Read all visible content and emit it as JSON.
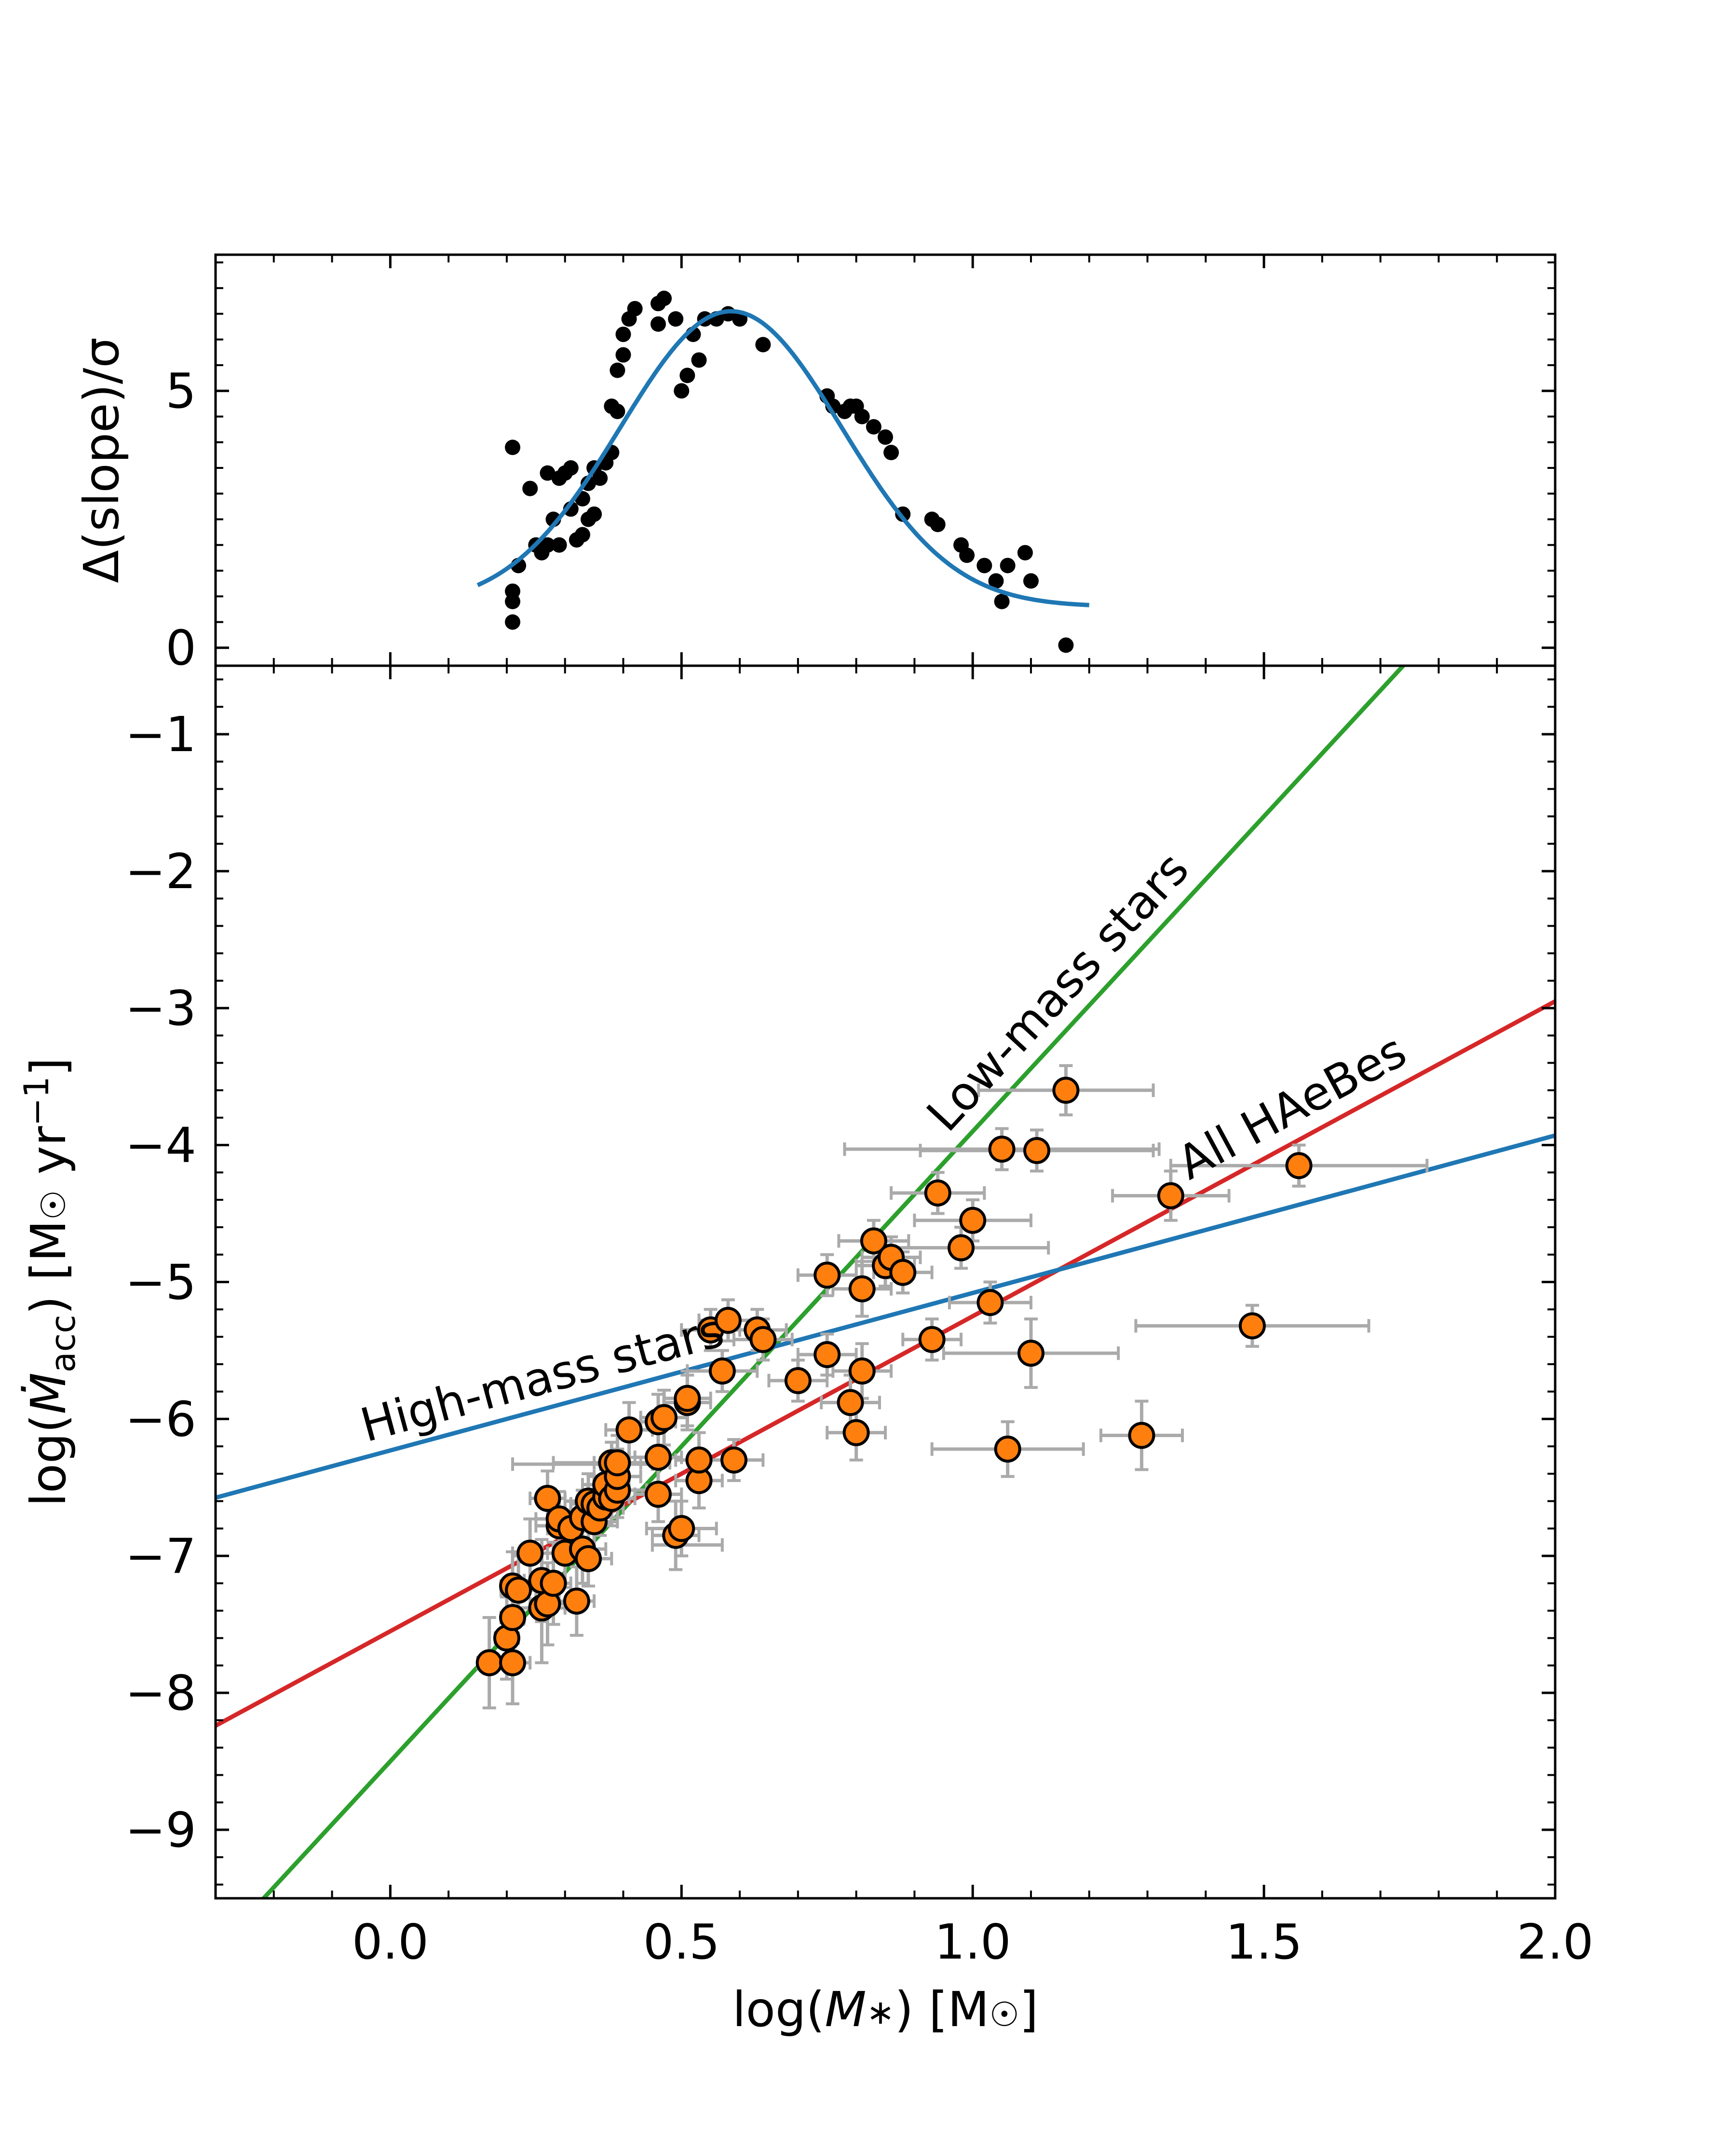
{
  "chart_data": [
    {
      "panel": "top",
      "type": "scatter",
      "ylabel": "Δ(slope)/σ",
      "xlim": [
        -0.3,
        2.0
      ],
      "ylim": [
        -0.35,
        7.65
      ],
      "yticks": [
        0,
        5
      ],
      "ytick_labels": [
        "0",
        "5"
      ],
      "colors": {
        "points": "#000000",
        "fit": "#1f77b4"
      },
      "series": [
        {
          "name": "points",
          "points": [
            [
              0.21,
              3.9
            ],
            [
              0.21,
              1.1
            ],
            [
              0.21,
              0.9
            ],
            [
              0.21,
              0.5
            ],
            [
              0.22,
              1.6
            ],
            [
              0.24,
              3.1
            ],
            [
              0.25,
              2.0
            ],
            [
              0.26,
              1.85
            ],
            [
              0.27,
              2.0
            ],
            [
              0.27,
              3.4
            ],
            [
              0.28,
              2.5
            ],
            [
              0.29,
              3.3
            ],
            [
              0.29,
              2.0
            ],
            [
              0.3,
              3.4
            ],
            [
              0.31,
              2.7
            ],
            [
              0.31,
              3.5
            ],
            [
              0.32,
              2.1
            ],
            [
              0.33,
              2.2
            ],
            [
              0.33,
              2.9
            ],
            [
              0.34,
              2.5
            ],
            [
              0.34,
              3.2
            ],
            [
              0.35,
              2.6
            ],
            [
              0.35,
              3.5
            ],
            [
              0.36,
              3.3
            ],
            [
              0.37,
              3.6
            ],
            [
              0.38,
              4.7
            ],
            [
              0.38,
              3.8
            ],
            [
              0.39,
              4.6
            ],
            [
              0.39,
              5.4
            ],
            [
              0.4,
              5.7
            ],
            [
              0.4,
              6.1
            ],
            [
              0.41,
              6.4
            ],
            [
              0.42,
              6.6
            ],
            [
              0.46,
              6.7
            ],
            [
              0.46,
              6.3
            ],
            [
              0.47,
              6.8
            ],
            [
              0.49,
              6.4
            ],
            [
              0.5,
              5.0
            ],
            [
              0.51,
              5.3
            ],
            [
              0.52,
              6.1
            ],
            [
              0.53,
              5.6
            ],
            [
              0.54,
              6.4
            ],
            [
              0.56,
              6.4
            ],
            [
              0.58,
              6.5
            ],
            [
              0.6,
              6.4
            ],
            [
              0.64,
              5.9
            ],
            [
              0.75,
              4.9
            ],
            [
              0.76,
              4.7
            ],
            [
              0.78,
              4.6
            ],
            [
              0.79,
              4.7
            ],
            [
              0.8,
              4.7
            ],
            [
              0.81,
              4.5
            ],
            [
              0.83,
              4.3
            ],
            [
              0.85,
              4.1
            ],
            [
              0.86,
              3.8
            ],
            [
              0.88,
              2.6
            ],
            [
              0.93,
              2.5
            ],
            [
              0.94,
              2.4
            ],
            [
              0.98,
              2.0
            ],
            [
              0.99,
              1.8
            ],
            [
              1.02,
              1.6
            ],
            [
              1.04,
              1.3
            ],
            [
              1.05,
              0.9
            ],
            [
              1.06,
              1.6
            ],
            [
              1.09,
              1.85
            ],
            [
              1.1,
              1.3
            ],
            [
              1.16,
              0.05
            ]
          ]
        },
        {
          "name": "gaussian fit",
          "model": {
            "A": 5.75,
            "mu": 0.585,
            "sigma": 0.19,
            "c": 0.8,
            "x_from": 0.15,
            "x_to": 1.2
          }
        }
      ]
    },
    {
      "panel": "bottom",
      "type": "scatter",
      "xlabel": "log(M*) [M☉]",
      "ylabel": "log(Ṁacc) [M☉ yr⁻¹]",
      "xlim": [
        -0.3,
        2.0
      ],
      "ylim": [
        -9.5,
        -0.5
      ],
      "xticks": [
        0.0,
        0.5,
        1.0,
        1.5,
        2.0
      ],
      "xtick_labels": [
        "0.0",
        "0.5",
        "1.0",
        "1.5",
        "2.0"
      ],
      "yticks": [
        -9,
        -8,
        -7,
        -6,
        -5,
        -4,
        -3,
        -2,
        -1
      ],
      "ytick_labels": [
        "−9",
        "−8",
        "−7",
        "−6",
        "−5",
        "−4",
        "−3",
        "−2",
        "−1"
      ],
      "colors": {
        "points_fill": "#ff7f0e",
        "points_edge": "#000000",
        "errorbars": "#aaaaaa"
      },
      "lines": [
        {
          "name": "Low-mass stars",
          "color": "#2ca02c",
          "slope": 4.6,
          "intercept": -8.5,
          "label": "Low-mass stars"
        },
        {
          "name": "All HAeBes",
          "color": "#d62728",
          "slope": 2.3,
          "intercept": -7.55,
          "label": "All HAeBes"
        },
        {
          "name": "High-mass stars",
          "color": "#1f77b4",
          "slope": 1.15,
          "intercept": -6.23,
          "label": "High-mass stars"
        }
      ],
      "points": [
        {
          "x": 0.17,
          "y": -7.78,
          "xerr": 0.02,
          "yerr": 0.33
        },
        {
          "x": 0.2,
          "y": -7.6,
          "xerr": 0.02,
          "yerr": 0.3
        },
        {
          "x": 0.21,
          "y": -7.78,
          "xerr": 0.03,
          "yerr": 0.3
        },
        {
          "x": 0.21,
          "y": -7.45,
          "xerr": 0.02,
          "yerr": 0.3
        },
        {
          "x": 0.21,
          "y": -7.22,
          "xerr": 0.02,
          "yerr": 0.25
        },
        {
          "x": 0.22,
          "y": -7.25,
          "xerr": 0.03,
          "yerr": 0.25
        },
        {
          "x": 0.24,
          "y": -6.98,
          "xerr": 0.03,
          "yerr": 0.25
        },
        {
          "x": 0.26,
          "y": -7.38,
          "xerr": 0.04,
          "yerr": 0.4
        },
        {
          "x": 0.26,
          "y": -7.18,
          "xerr": 0.03,
          "yerr": 0.3
        },
        {
          "x": 0.27,
          "y": -6.58,
          "xerr": 0.03,
          "yerr": 0.2
        },
        {
          "x": 0.27,
          "y": -7.35,
          "xerr": 0.03,
          "yerr": 0.3
        },
        {
          "x": 0.28,
          "y": -7.2,
          "xerr": 0.03,
          "yerr": 0.3
        },
        {
          "x": 0.29,
          "y": -6.78,
          "xerr": 0.04,
          "yerr": 0.2
        },
        {
          "x": 0.29,
          "y": -6.73,
          "xerr": 0.04,
          "yerr": 0.2
        },
        {
          "x": 0.3,
          "y": -6.98,
          "xerr": 0.04,
          "yerr": 0.25
        },
        {
          "x": 0.31,
          "y": -6.8,
          "xerr": 0.04,
          "yerr": 0.2
        },
        {
          "x": 0.32,
          "y": -7.33,
          "xerr": 0.03,
          "yerr": 0.25
        },
        {
          "x": 0.33,
          "y": -6.72,
          "xerr": 0.05,
          "yerr": 0.2
        },
        {
          "x": 0.33,
          "y": -6.95,
          "xerr": 0.04,
          "yerr": 0.25
        },
        {
          "x": 0.34,
          "y": -6.6,
          "xerr": 0.04,
          "yerr": 0.2
        },
        {
          "x": 0.34,
          "y": -7.02,
          "xerr": 0.04,
          "yerr": 0.2
        },
        {
          "x": 0.35,
          "y": -6.75,
          "xerr": 0.04,
          "yerr": 0.2
        },
        {
          "x": 0.35,
          "y": -6.62,
          "xerr": 0.04,
          "yerr": 0.2
        },
        {
          "x": 0.36,
          "y": -6.65,
          "xerr": 0.04,
          "yerr": 0.2
        },
        {
          "x": 0.37,
          "y": -6.57,
          "xerr": 0.04,
          "yerr": 0.2
        },
        {
          "x": 0.37,
          "y": -6.48,
          "xerr": 0.04,
          "yerr": 0.2
        },
        {
          "x": 0.38,
          "y": -6.32,
          "xerr": 0.1,
          "yerr": 0.15
        },
        {
          "x": 0.38,
          "y": -6.58,
          "xerr": 0.04,
          "yerr": 0.2
        },
        {
          "x": 0.39,
          "y": -6.52,
          "xerr": 0.05,
          "yerr": 0.2
        },
        {
          "x": 0.39,
          "y": -6.42,
          "xerr": 0.04,
          "yerr": 0.2
        },
        {
          "x": 0.39,
          "y": -6.32,
          "xerr": 0.04,
          "yerr": 0.2
        },
        {
          "x": 0.41,
          "y": -6.08,
          "xerr": 0.04,
          "yerr": 0.2
        },
        {
          "x": 0.46,
          "y": -6.28,
          "xerr": 0.04,
          "yerr": 0.2
        },
        {
          "x": 0.46,
          "y": -6.55,
          "xerr": 0.04,
          "yerr": 0.2
        },
        {
          "x": 0.46,
          "y": -6.02,
          "xerr": 0.03,
          "yerr": 0.2
        },
        {
          "x": 0.47,
          "y": -5.99,
          "xerr": 0.04,
          "yerr": 0.2
        },
        {
          "x": 0.49,
          "y": -6.85,
          "xerr": 0.04,
          "yerr": 0.25
        },
        {
          "x": 0.5,
          "y": -6.8,
          "xerr": 0.06,
          "yerr": 0.2
        },
        {
          "x": 0.51,
          "y": -5.88,
          "xerr": 0.04,
          "yerr": 0.2
        },
        {
          "x": 0.51,
          "y": -5.85,
          "xerr": 0.04,
          "yerr": 0.2
        },
        {
          "x": 0.53,
          "y": -6.45,
          "xerr": 0.04,
          "yerr": 0.2
        },
        {
          "x": 0.53,
          "y": -6.3,
          "xerr": 0.04,
          "yerr": 0.2
        },
        {
          "x": 0.55,
          "y": -5.35,
          "xerr": 0.05,
          "yerr": 0.15
        },
        {
          "x": 0.57,
          "y": -5.65,
          "xerr": 0.06,
          "yerr": 0.15
        },
        {
          "x": 0.58,
          "y": -5.28,
          "xerr": 0.05,
          "yerr": 0.15
        },
        {
          "x": 0.59,
          "y": -6.3,
          "xerr": 0.05,
          "yerr": 0.15
        },
        {
          "x": 0.63,
          "y": -5.35,
          "xerr": 0.05,
          "yerr": 0.15
        },
        {
          "x": 0.64,
          "y": -5.42,
          "xerr": 0.05,
          "yerr": 0.15
        },
        {
          "x": 0.7,
          "y": -5.72,
          "xerr": 0.05,
          "yerr": 0.15
        },
        {
          "x": 0.75,
          "y": -4.95,
          "xerr": 0.05,
          "yerr": 0.15
        },
        {
          "x": 0.75,
          "y": -5.53,
          "xerr": 0.05,
          "yerr": 0.15
        },
        {
          "x": 0.79,
          "y": -5.88,
          "xerr": 0.05,
          "yerr": 0.2
        },
        {
          "x": 0.8,
          "y": -6.1,
          "xerr": 0.05,
          "yerr": 0.2
        },
        {
          "x": 0.81,
          "y": -5.65,
          "xerr": 0.05,
          "yerr": 0.2
        },
        {
          "x": 0.81,
          "y": -5.05,
          "xerr": 0.05,
          "yerr": 0.2
        },
        {
          "x": 0.83,
          "y": -4.7,
          "xerr": 0.06,
          "yerr": 0.15
        },
        {
          "x": 0.85,
          "y": -4.88,
          "xerr": 0.05,
          "yerr": 0.15
        },
        {
          "x": 0.86,
          "y": -4.82,
          "xerr": 0.05,
          "yerr": 0.15
        },
        {
          "x": 0.88,
          "y": -4.93,
          "xerr": 0.05,
          "yerr": 0.15
        },
        {
          "x": 0.93,
          "y": -5.42,
          "xerr": 0.05,
          "yerr": 0.15
        },
        {
          "x": 0.94,
          "y": -4.35,
          "xerr": 0.08,
          "yerr": 0.15
        },
        {
          "x": 0.98,
          "y": -4.75,
          "xerr": 0.15,
          "yerr": 0.15
        },
        {
          "x": 1.0,
          "y": -4.55,
          "xerr": 0.1,
          "yerr": 0.15
        },
        {
          "x": 1.03,
          "y": -5.15,
          "xerr": 0.07,
          "yerr": 0.15
        },
        {
          "x": 1.05,
          "y": -4.03,
          "xerr": 0.27,
          "yerr": 0.15
        },
        {
          "x": 1.06,
          "y": -6.22,
          "xerr": 0.13,
          "yerr": 0.2
        },
        {
          "x": 1.1,
          "y": -5.52,
          "xerr": 0.15,
          "yerr": 0.25
        },
        {
          "x": 1.11,
          "y": -4.04,
          "xerr": 0.2,
          "yerr": 0.15
        },
        {
          "x": 1.16,
          "y": -3.6,
          "xerr": 0.15,
          "yerr": 0.18
        },
        {
          "x": 1.29,
          "y": -6.12,
          "xerr": 0.07,
          "yerr": 0.25
        },
        {
          "x": 1.34,
          "y": -4.37,
          "xerr": 0.1,
          "yerr": 0.18
        },
        {
          "x": 1.48,
          "y": -5.32,
          "xerr": 0.2,
          "yerr": 0.15
        },
        {
          "x": 1.56,
          "y": -4.15,
          "xerr": 0.22,
          "yerr": 0.15
        }
      ],
      "wide_errorbars": [
        {
          "x": 0.33,
          "y": -6.33,
          "x_from": 0.21,
          "x_to": 0.45
        },
        {
          "x": 0.47,
          "y": -6.92,
          "x_from": 0.45,
          "x_to": 0.57
        }
      ]
    }
  ]
}
